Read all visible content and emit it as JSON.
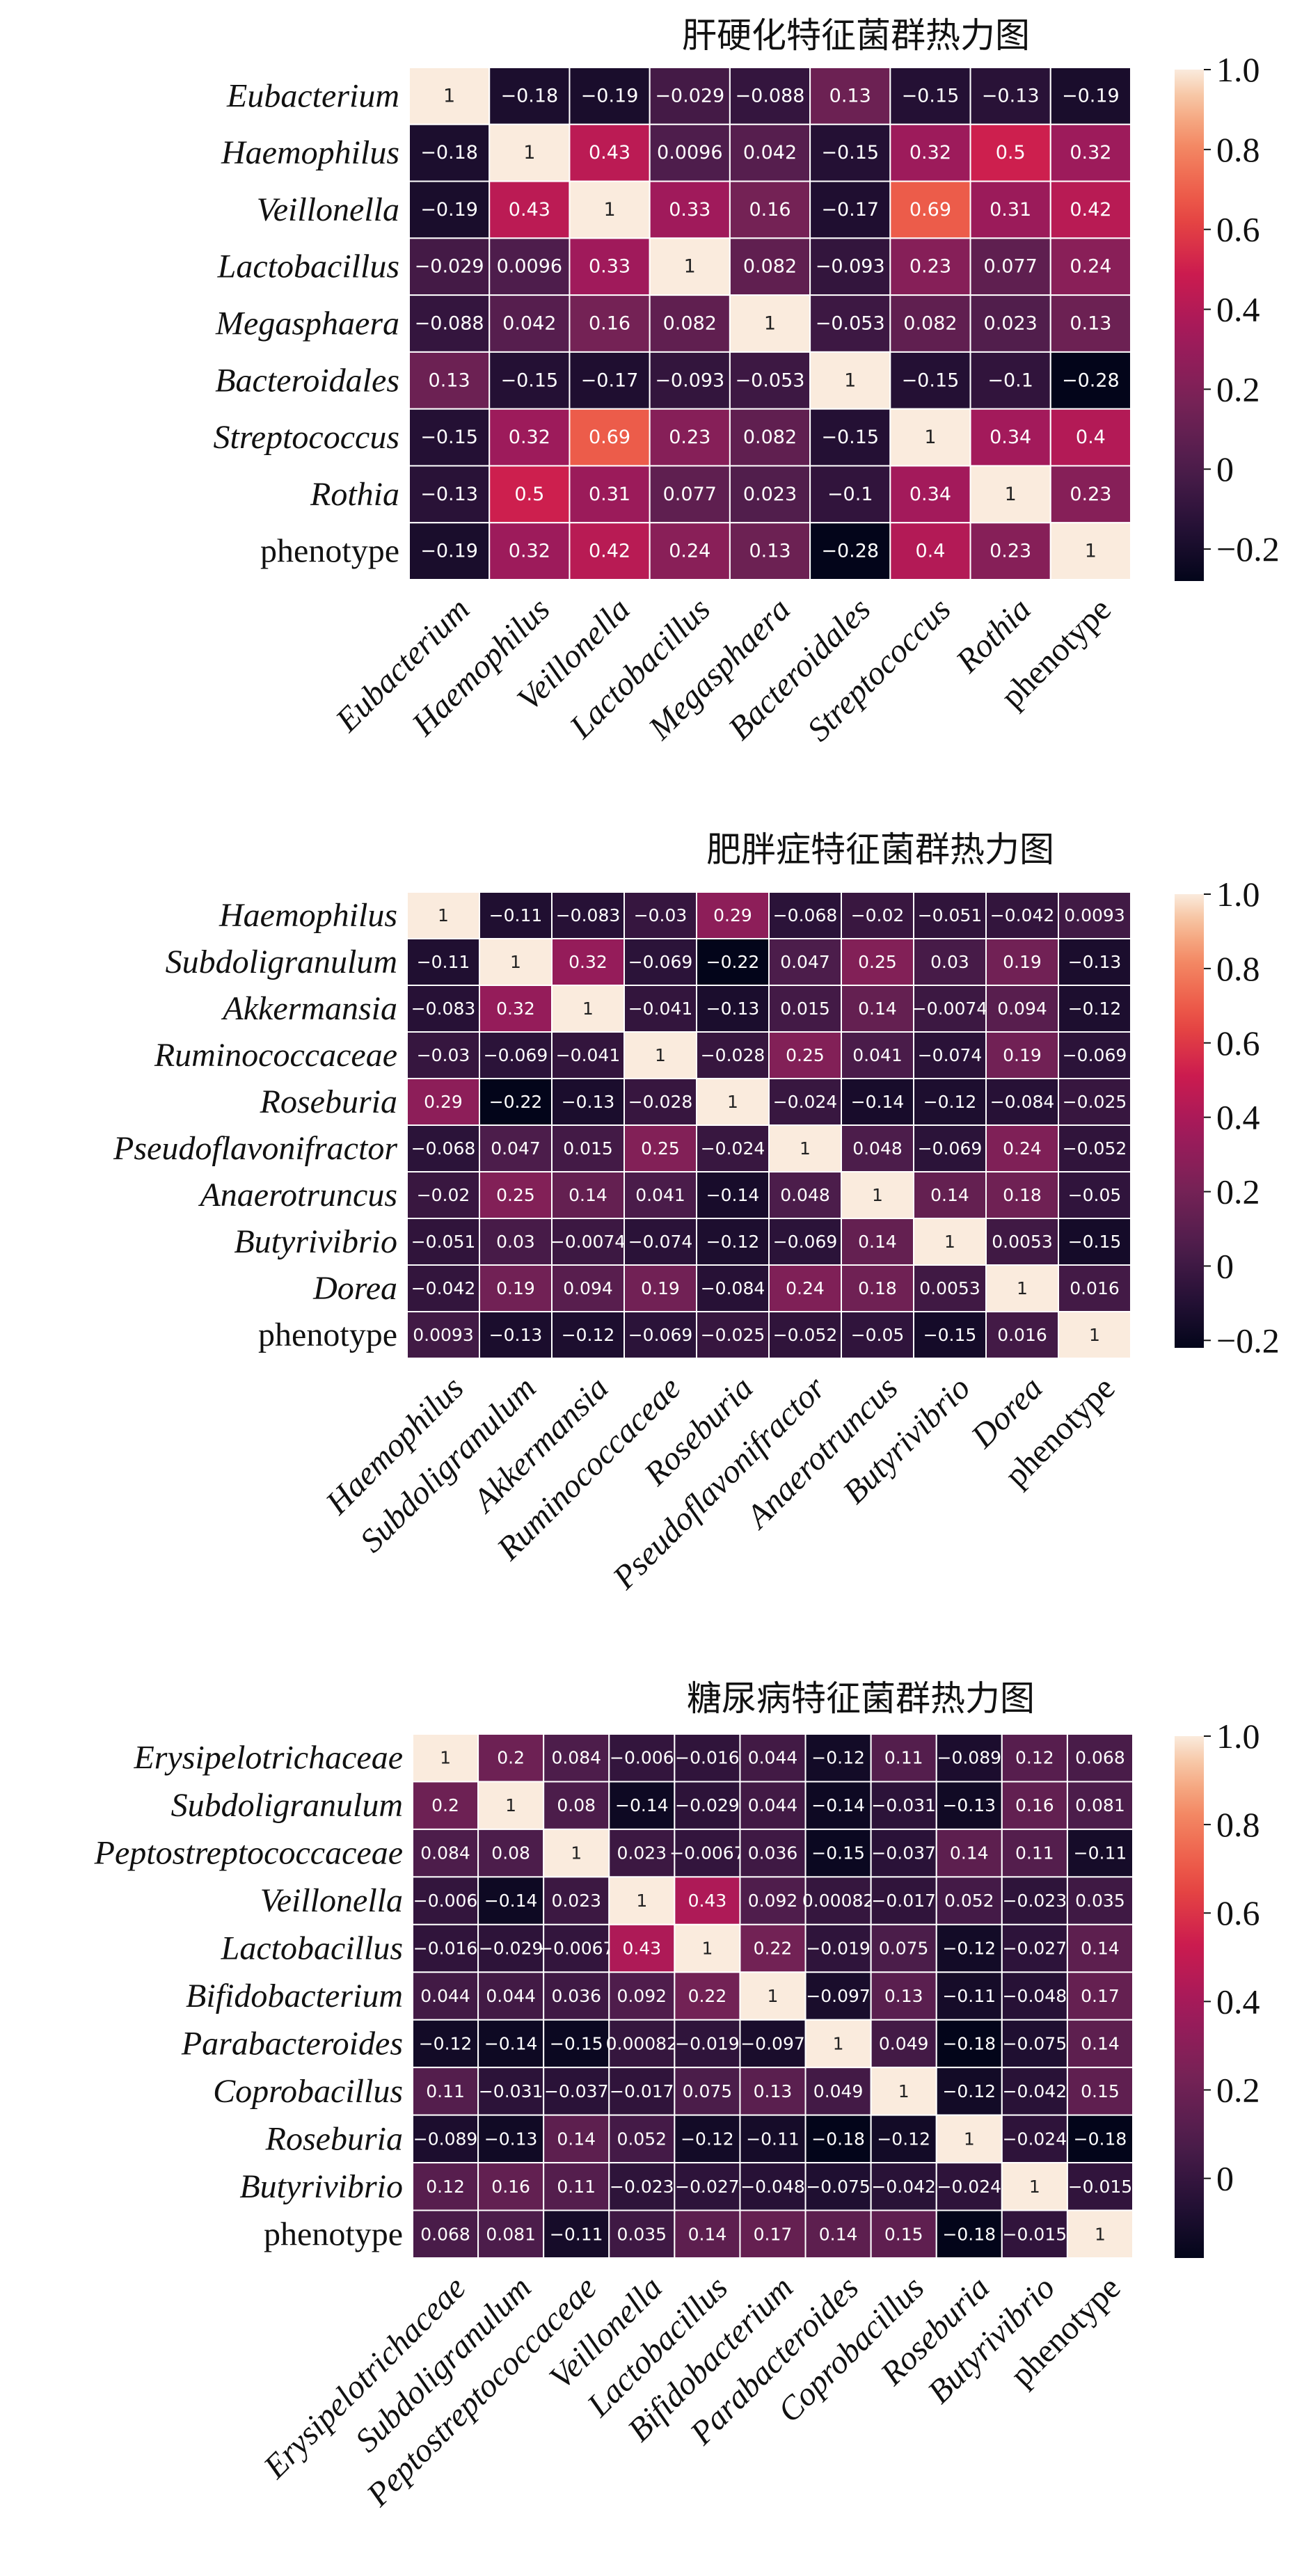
{
  "figure": {
    "labels_upright": [
      "phenotype"
    ]
  },
  "chart_data": [
    {
      "type": "heatmap",
      "title": "肝硬化特征菌群热力图",
      "labels": [
        "Eubacterium",
        "Haemophilus",
        "Veillonella",
        "Lactobacillus",
        "Megasphaera",
        "Bacteroidales",
        "Streptococcus",
        "Rothia",
        "phenotype"
      ],
      "cell_text": [
        [
          "1",
          "-0.18",
          "-0.19",
          "-0.029",
          "-0.088",
          "0.13",
          "-0.15",
          "-0.13",
          "-0.19"
        ],
        [
          "-0.18",
          "1",
          "0.43",
          "0.0096",
          "0.042",
          "-0.15",
          "0.32",
          "0.5",
          "0.32"
        ],
        [
          "-0.19",
          "0.43",
          "1",
          "0.33",
          "0.16",
          "-0.17",
          "0.69",
          "0.31",
          "0.42"
        ],
        [
          "-0.029",
          "0.0096",
          "0.33",
          "1",
          "0.082",
          "-0.093",
          "0.23",
          "0.077",
          "0.24"
        ],
        [
          "-0.088",
          "0.042",
          "0.16",
          "0.082",
          "1",
          "-0.053",
          "0.082",
          "0.023",
          "0.13"
        ],
        [
          "0.13",
          "-0.15",
          "-0.17",
          "-0.093",
          "-0.053",
          "1",
          "-0.15",
          "-0.1",
          "-0.28"
        ],
        [
          "-0.15",
          "0.32",
          "0.69",
          "0.23",
          "0.082",
          "-0.15",
          "1",
          "0.34",
          "0.4"
        ],
        [
          "-0.13",
          "0.5",
          "0.31",
          "0.077",
          "0.023",
          "-0.1",
          "0.34",
          "1",
          "0.23"
        ],
        [
          "-0.19",
          "0.32",
          "0.42",
          "0.24",
          "0.13",
          "-0.28",
          "0.4",
          "0.23",
          "1"
        ]
      ],
      "vmin": -0.28,
      "vmax": 1.0,
      "colorbar_ticks": [
        -0.2,
        0,
        0.2,
        0.4,
        0.6,
        0.8,
        1.0
      ],
      "colorbar_tick_labels": [
        "−0.2",
        "0",
        "0.2",
        "0.4",
        "0.6",
        "0.8",
        "1.0"
      ]
    },
    {
      "type": "heatmap",
      "title": "肥胖症特征菌群热力图",
      "labels": [
        "Haemophilus",
        "Subdoligranulum",
        "Akkermansia",
        "Ruminococcaceae",
        "Roseburia",
        "Pseudoflavonifractor",
        "Anaerotruncus",
        "Butyrivibrio",
        "Dorea",
        "phenotype"
      ],
      "cell_text": [
        [
          "1",
          "-0.11",
          "-0.083",
          "-0.03",
          "0.29",
          "-0.068",
          "-0.02",
          "-0.051",
          "-0.042",
          "0.0093"
        ],
        [
          "-0.11",
          "1",
          "0.32",
          "-0.069",
          "-0.22",
          "0.047",
          "0.25",
          "0.03",
          "0.19",
          "-0.13"
        ],
        [
          "-0.083",
          "0.32",
          "1",
          "-0.041",
          "-0.13",
          "0.015",
          "0.14",
          "-0.0074",
          "0.094",
          "-0.12"
        ],
        [
          "-0.03",
          "-0.069",
          "-0.041",
          "1",
          "-0.028",
          "0.25",
          "0.041",
          "-0.074",
          "0.19",
          "-0.069"
        ],
        [
          "0.29",
          "-0.22",
          "-0.13",
          "-0.028",
          "1",
          "-0.024",
          "-0.14",
          "-0.12",
          "-0.084",
          "-0.025"
        ],
        [
          "-0.068",
          "0.047",
          "0.015",
          "0.25",
          "-0.024",
          "1",
          "0.048",
          "-0.069",
          "0.24",
          "-0.052"
        ],
        [
          "-0.02",
          "0.25",
          "0.14",
          "0.041",
          "-0.14",
          "0.048",
          "1",
          "0.14",
          "0.18",
          "-0.05"
        ],
        [
          "-0.051",
          "0.03",
          "-0.0074",
          "-0.074",
          "-0.12",
          "-0.069",
          "0.14",
          "1",
          "0.0053",
          "-0.15"
        ],
        [
          "-0.042",
          "0.19",
          "0.094",
          "0.19",
          "-0.084",
          "0.24",
          "0.18",
          "0.0053",
          "1",
          "0.016"
        ],
        [
          "0.0093",
          "-0.13",
          "-0.12",
          "-0.069",
          "-0.025",
          "-0.052",
          "-0.05",
          "-0.15",
          "0.016",
          "1"
        ]
      ],
      "vmin": -0.22,
      "vmax": 1.0,
      "colorbar_ticks": [
        -0.2,
        0,
        0.2,
        0.4,
        0.6,
        0.8,
        1.0
      ],
      "colorbar_tick_labels": [
        "−0.2",
        "0",
        "0.2",
        "0.4",
        "0.6",
        "0.8",
        "1.0"
      ]
    },
    {
      "type": "heatmap",
      "title": "糖尿病特征菌群热力图",
      "labels": [
        "Erysipelotrichaceae",
        "Subdoligranulum",
        "Peptostreptococcaceae",
        "Veillonella",
        "Lactobacillus",
        "Bifidobacterium",
        "Parabacteroides",
        "Coprobacillus",
        "Roseburia",
        "Butyrivibrio",
        "phenotype"
      ],
      "cell_text": [
        [
          "1",
          "0.2",
          "0.084",
          "-0.006",
          "-0.016",
          "0.044",
          "-0.12",
          "0.11",
          "-0.089",
          "0.12",
          "0.068"
        ],
        [
          "0.2",
          "1",
          "0.08",
          "-0.14",
          "-0.029",
          "0.044",
          "-0.14",
          "-0.031",
          "-0.13",
          "0.16",
          "0.081"
        ],
        [
          "0.084",
          "0.08",
          "1",
          "0.023",
          "-0.0067",
          "0.036",
          "-0.15",
          "-0.037",
          "0.14",
          "0.11",
          "-0.11"
        ],
        [
          "-0.006",
          "-0.14",
          "0.023",
          "1",
          "0.43",
          "0.092",
          "0.00082",
          "-0.017",
          "0.052",
          "-0.023",
          "0.035"
        ],
        [
          "-0.016",
          "-0.029",
          "-0.0067",
          "0.43",
          "1",
          "0.22",
          "-0.019",
          "0.075",
          "-0.12",
          "-0.027",
          "0.14"
        ],
        [
          "0.044",
          "0.044",
          "0.036",
          "0.092",
          "0.22",
          "1",
          "-0.097",
          "0.13",
          "-0.11",
          "-0.048",
          "0.17"
        ],
        [
          "-0.12",
          "-0.14",
          "-0.15",
          "0.00082",
          "-0.019",
          "-0.097",
          "1",
          "0.049",
          "-0.18",
          "-0.075",
          "0.14"
        ],
        [
          "0.11",
          "-0.031",
          "-0.037",
          "-0.017",
          "0.075",
          "0.13",
          "0.049",
          "1",
          "-0.12",
          "-0.042",
          "0.15"
        ],
        [
          "-0.089",
          "-0.13",
          "0.14",
          "0.052",
          "-0.12",
          "-0.11",
          "-0.18",
          "-0.12",
          "1",
          "-0.024",
          "-0.18"
        ],
        [
          "0.12",
          "0.16",
          "0.11",
          "-0.023",
          "-0.027",
          "-0.048",
          "-0.075",
          "-0.042",
          "-0.024",
          "1",
          "-0.015"
        ],
        [
          "0.068",
          "0.081",
          "-0.11",
          "0.035",
          "0.14",
          "0.17",
          "0.14",
          "0.15",
          "-0.18",
          "-0.015",
          "1"
        ]
      ],
      "vmin": -0.18,
      "vmax": 1.0,
      "colorbar_ticks": [
        0,
        0.2,
        0.4,
        0.6,
        0.8,
        1.0
      ],
      "colorbar_tick_labels": [
        "0",
        "0.2",
        "0.4",
        "0.6",
        "0.8",
        "1.0"
      ]
    }
  ]
}
